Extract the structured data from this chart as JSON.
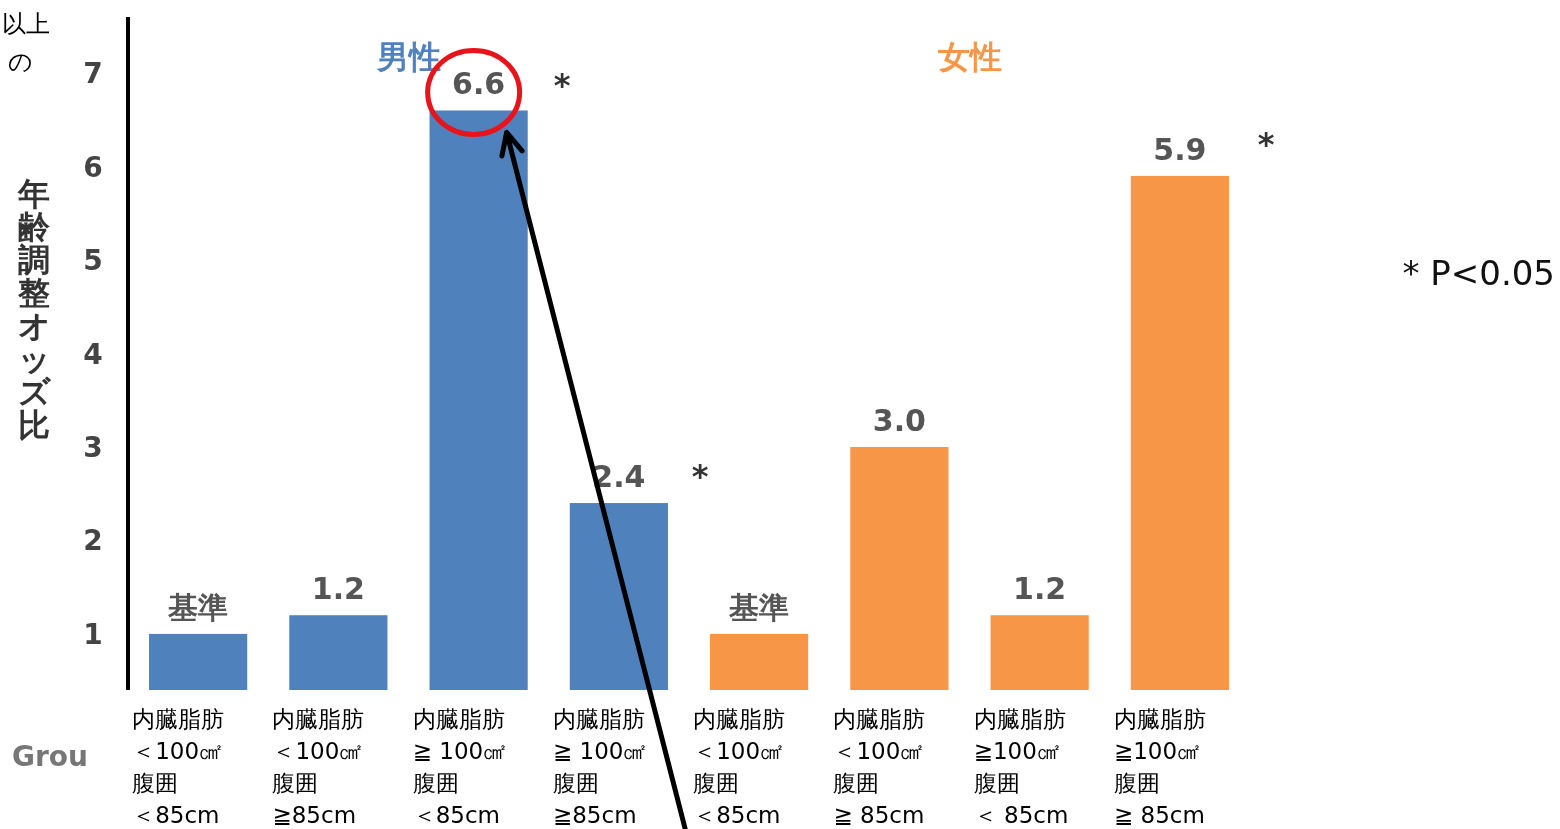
{
  "chart_data": {
    "type": "bar",
    "ylabel": "年齢調整オッズ比",
    "categories": [
      "内臓脂肪＜100㎠腹囲＜85cm",
      "内臓脂肪＜100㎠腹囲≧85cm",
      "内臓脂肪≧ 100㎠腹囲＜85cm",
      "内臓脂肪≧ 100㎠腹囲≧85cm",
      "内臓脂肪＜100㎠腹囲＜85cm",
      "内臓脂肪＜100㎠腹囲≧ 85cm",
      "内臓脂肪≧100㎠腹囲＜ 85cm",
      "内臓脂肪≧100㎠腹囲≧ 85cm"
    ],
    "series": [
      {
        "name": "男性",
        "color": "#4f81bd",
        "values": [
          1,
          1.2,
          6.6,
          2.4,
          null,
          null,
          null,
          null
        ],
        "value_labels": [
          "基準",
          "1.2",
          "6.6",
          "2.4",
          null,
          null,
          null,
          null
        ]
      },
      {
        "name": "女性",
        "color": "#f79646",
        "values": [
          null,
          null,
          null,
          null,
          1,
          3.0,
          1.2,
          5.9
        ],
        "value_labels": [
          null,
          null,
          null,
          null,
          "基準",
          "3.0",
          "1.2",
          "5.9"
        ]
      }
    ],
    "ylim": [
      0.4,
      7.6
    ],
    "yticks": [
      1,
      2,
      3,
      4,
      5,
      6,
      7
    ],
    "annotations": [
      "*",
      "*",
      "*",
      "* P<0.05",
      "以上",
      "の",
      "Grou"
    ]
  }
}
